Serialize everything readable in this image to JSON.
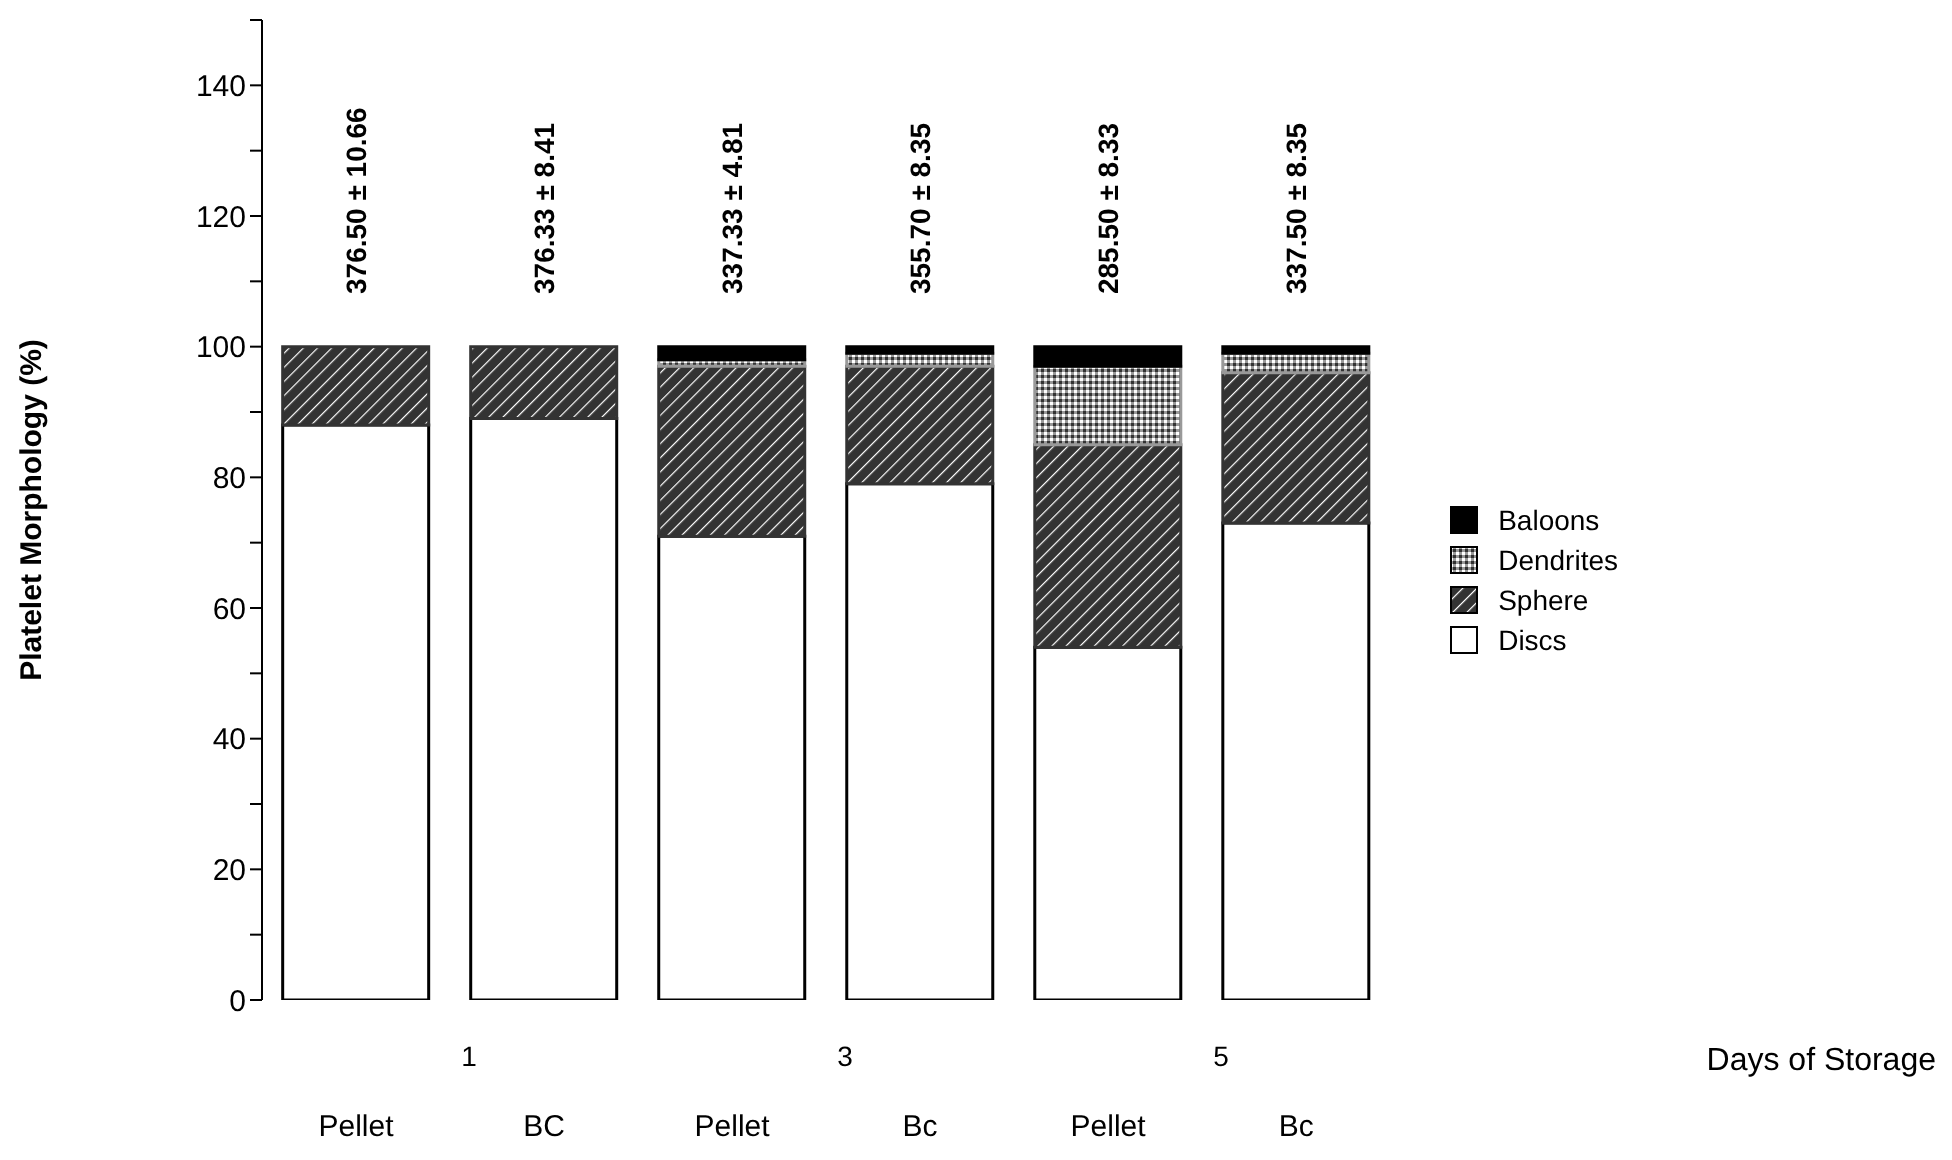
{
  "chart_data": {
    "type": "bar",
    "stacked": true,
    "ylabel": "Platelet Morphology (%)",
    "categories": [
      "Pellet",
      "BC",
      "Pellet",
      "Bc",
      "Pellet",
      "Bc"
    ],
    "series": [
      {
        "name": "Discs",
        "color": "#ffffff",
        "values": [
          88,
          89,
          71,
          79,
          54,
          73
        ]
      },
      {
        "name": "Sphere",
        "color": "#333333",
        "values": [
          12,
          11,
          26,
          18,
          31,
          23
        ]
      },
      {
        "name": "Dendrites",
        "color": "#999999",
        "values": [
          0,
          0,
          1,
          2,
          12,
          3
        ]
      },
      {
        "name": "Baloons",
        "color": "#000000",
        "values": [
          0,
          0,
          2,
          1,
          3,
          1
        ]
      }
    ],
    "ylim": [
      0,
      150
    ],
    "yticks": [
      0,
      {
        "value": 10,
        "label": null
      },
      20,
      {
        "value": 30,
        "label": null
      },
      40,
      {
        "value": 50,
        "label": null
      },
      60,
      {
        "value": 70,
        "label": null
      },
      80,
      {
        "value": 90,
        "label": null
      },
      100,
      {
        "value": 110,
        "label": null
      },
      120,
      {
        "value": 130,
        "label": null
      },
      140,
      {
        "value": 150,
        "label": null
      }
    ],
    "annotations": [
      "376.50 ± 10.66",
      "376.33 ± 8.41",
      "337.33 ± 4.81",
      "355.70 ± 8.35",
      "285.50 ± 8.33",
      "337.50 ± 8.35",
      "1",
      "3",
      "5",
      "Days of Storage"
    ],
    "grid": false,
    "legend": "right"
  }
}
